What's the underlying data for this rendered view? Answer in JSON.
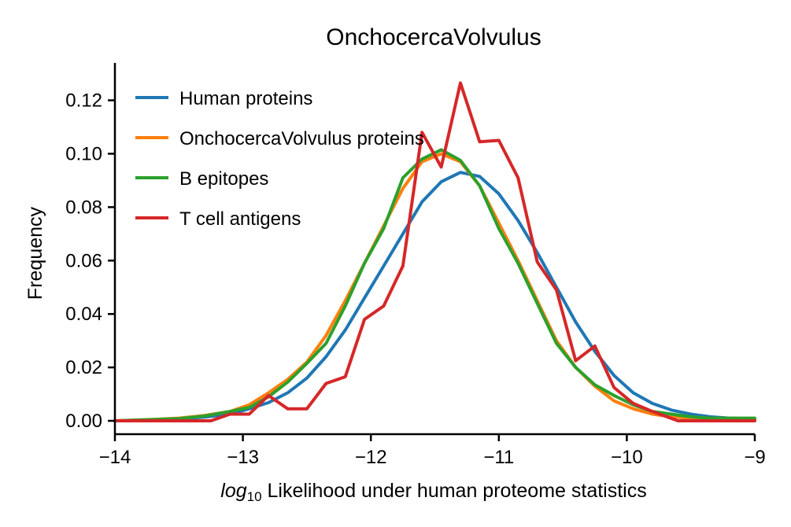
{
  "chart_data": {
    "type": "line",
    "title": "OnchocercaVolvulus",
    "xlabel_math": "log",
    "xlabel_sub": "10",
    "xlabel_rest": " Likelihood under human proteome statistics",
    "ylabel": "Frequency",
    "xlim": [
      -14,
      -9
    ],
    "ylim": [
      -0.005,
      0.134
    ],
    "xticks": [
      -14,
      -13,
      -12,
      -11,
      -10,
      -9
    ],
    "xtick_labels": [
      "−14",
      "−13",
      "−12",
      "−11",
      "−10",
      "−9"
    ],
    "yticks": [
      0.0,
      0.02,
      0.04,
      0.06,
      0.08,
      0.1,
      0.12
    ],
    "ytick_labels": [
      "0.00",
      "0.02",
      "0.04",
      "0.06",
      "0.08",
      "0.10",
      "0.12"
    ],
    "grid": false,
    "legend_position": "top-left",
    "series": [
      {
        "name": "Human proteins",
        "color": "#1f77b4",
        "x": [
          -14.0,
          -13.9,
          -13.7,
          -13.5,
          -13.3,
          -13.1,
          -12.95,
          -12.8,
          -12.65,
          -12.5,
          -12.35,
          -12.2,
          -12.05,
          -11.9,
          -11.75,
          -11.6,
          -11.45,
          -11.3,
          -11.15,
          -11.0,
          -10.85,
          -10.7,
          -10.55,
          -10.4,
          -10.25,
          -10.1,
          -9.95,
          -9.8,
          -9.65,
          -9.5,
          -9.35,
          -9.2,
          -9.0
        ],
        "y": [
          0.0,
          0.0,
          0.0004,
          0.0008,
          0.0014,
          0.0025,
          0.0045,
          0.0068,
          0.0105,
          0.016,
          0.024,
          0.034,
          0.046,
          0.058,
          0.07,
          0.082,
          0.0895,
          0.093,
          0.0915,
          0.085,
          0.075,
          0.063,
          0.05,
          0.037,
          0.026,
          0.017,
          0.0105,
          0.0065,
          0.004,
          0.0025,
          0.0015,
          0.001,
          0.0008
        ]
      },
      {
        "name": "OnchocercaVolvulus proteins",
        "color": "#ff7f0e",
        "x": [
          -14.0,
          -13.7,
          -13.5,
          -13.3,
          -13.1,
          -12.95,
          -12.8,
          -12.65,
          -12.5,
          -12.35,
          -12.2,
          -12.05,
          -11.9,
          -11.75,
          -11.6,
          -11.45,
          -11.3,
          -11.15,
          -11.0,
          -10.85,
          -10.7,
          -10.55,
          -10.4,
          -10.25,
          -10.1,
          -9.95,
          -9.8,
          -9.65,
          -9.5,
          -9.35,
          -9.2,
          -9.0
        ],
        "y": [
          0.0,
          0.0005,
          0.001,
          0.002,
          0.0035,
          0.006,
          0.0105,
          0.0155,
          0.022,
          0.032,
          0.045,
          0.059,
          0.073,
          0.087,
          0.097,
          0.1,
          0.097,
          0.088,
          0.074,
          0.06,
          0.045,
          0.03,
          0.02,
          0.013,
          0.0075,
          0.0045,
          0.0025,
          0.0015,
          0.001,
          0.0005,
          0.0003,
          0.0003
        ]
      },
      {
        "name": "B epitopes",
        "color": "#2ca02c",
        "x": [
          -14.0,
          -13.5,
          -13.3,
          -13.1,
          -12.95,
          -12.8,
          -12.65,
          -12.5,
          -12.35,
          -12.2,
          -12.05,
          -11.9,
          -11.75,
          -11.6,
          -11.45,
          -11.3,
          -11.15,
          -11.0,
          -10.85,
          -10.7,
          -10.55,
          -10.4,
          -10.25,
          -10.1,
          -9.95,
          -9.8,
          -9.65,
          -9.5,
          -9.35,
          -9.2,
          -9.0
        ],
        "y": [
          0.0,
          0.0008,
          0.0018,
          0.0035,
          0.005,
          0.009,
          0.0145,
          0.0215,
          0.029,
          0.043,
          0.059,
          0.072,
          0.091,
          0.098,
          0.1015,
          0.0975,
          0.088,
          0.072,
          0.059,
          0.044,
          0.029,
          0.02,
          0.0135,
          0.0095,
          0.006,
          0.0035,
          0.0025,
          0.0015,
          0.001,
          0.001,
          0.001
        ]
      },
      {
        "name": "T cell antigens",
        "color": "#d62728",
        "x": [
          -14.0,
          -13.25,
          -13.1,
          -12.95,
          -12.8,
          -12.65,
          -12.5,
          -12.35,
          -12.2,
          -12.05,
          -11.9,
          -11.75,
          -11.6,
          -11.45,
          -11.3,
          -11.15,
          -11.0,
          -10.85,
          -10.7,
          -10.55,
          -10.4,
          -10.25,
          -10.1,
          -9.95,
          -9.8,
          -9.6,
          -9.0
        ],
        "y": [
          0.0,
          0.0,
          0.0025,
          0.0025,
          0.0095,
          0.0045,
          0.0045,
          0.014,
          0.0165,
          0.038,
          0.043,
          0.058,
          0.108,
          0.095,
          0.1265,
          0.1045,
          0.105,
          0.091,
          0.0595,
          0.049,
          0.0225,
          0.028,
          0.0125,
          0.0065,
          0.0035,
          0.0,
          0.0
        ]
      }
    ]
  }
}
